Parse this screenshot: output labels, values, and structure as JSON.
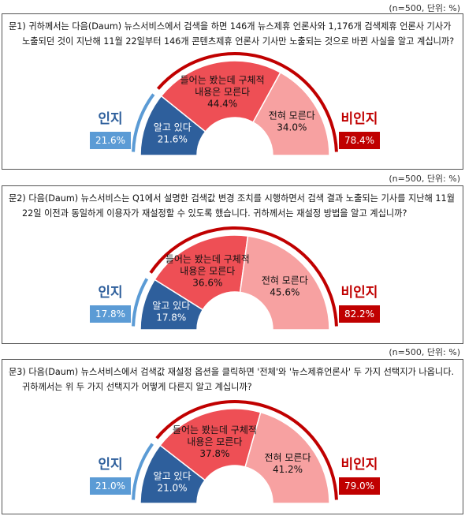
{
  "panels": [
    {
      "meta": "(n=500, 단위: %)",
      "question_line1": "문1) 귀하께서는 다음(Daum) 뉴스서비스에서 검색을 하면 146개 뉴스제휴 언론사와 1,176개 검색제휴 언론사 기사가",
      "question_line2": "노출되던 것이 지난해 11월 22일부터 146개 콘텐츠제휴 언론사 기사만 노출되는 것으로 바뀐 사실을 알고 계십니까?",
      "aware_label": "인지",
      "aware_value": "21.6%",
      "unaware_label": "비인지",
      "unaware_value": "78.4%",
      "chart_data": {
        "type": "pie",
        "categories": [
          "알고 있다",
          "들어는 봤는데 구체적 내용은 모른다",
          "전혀 모른다"
        ],
        "values": [
          21.6,
          44.4,
          34.0
        ],
        "slice_labels": [
          {
            "line1": "알고 있다",
            "line2": "",
            "value": "21.6%"
          },
          {
            "line1": "들어는 봤는데 구체적",
            "line2": "내용은 모른다",
            "value": "44.4%"
          },
          {
            "line1": "전혀 모른다",
            "line2": "",
            "value": "34.0%"
          }
        ]
      }
    },
    {
      "meta": "(n=500, 단위: %)",
      "question_line1": "문2) 다음(Daum) 뉴스서비스는 Q1에서 설명한 검색값 변경 조치를 시행하면서 검색 결과 노출되는 기사를 지난해 11월",
      "question_line2": "22일 이전과 동일하게 이용자가 재설정할 수 있도록 했습니다. 귀하께서는 재설정 방법을 알고 계십니까?",
      "aware_label": "인지",
      "aware_value": "17.8%",
      "unaware_label": "비인지",
      "unaware_value": "82.2%",
      "chart_data": {
        "type": "pie",
        "categories": [
          "알고 있다",
          "들어는 봤는데 구체적 내용은 모른다",
          "전혀 모른다"
        ],
        "values": [
          17.8,
          36.6,
          45.6
        ],
        "slice_labels": [
          {
            "line1": "알고 있다",
            "line2": "",
            "value": "17.8%"
          },
          {
            "line1": "들어는 봤는데 구체적",
            "line2": "내용은 모른다",
            "value": "36.6%"
          },
          {
            "line1": "전혀 모른다",
            "line2": "",
            "value": "45.6%"
          }
        ]
      }
    },
    {
      "meta": "(n=500, 단위: %)",
      "question_line1": "문3) 다음(Daum) 뉴스서비스에서 검색값 재설정 옵션을 클릭하면 '전체'와 '뉴스제휴언론사' 두 가지 선택지가 나옵니다.",
      "question_line2": "귀하께서는 위 두 가지 선택지가 어떻게 다른지 알고 계십니까?",
      "aware_label": "인지",
      "aware_value": "21.0%",
      "unaware_label": "비인지",
      "unaware_value": "79.0%",
      "chart_data": {
        "type": "pie",
        "categories": [
          "알고 있다",
          "들어는 봤는데 구체적 내용은 모른다",
          "전혀 모른다"
        ],
        "values": [
          21.0,
          37.8,
          41.2
        ],
        "slice_labels": [
          {
            "line1": "알고 있다",
            "line2": "",
            "value": "21.0%"
          },
          {
            "line1": "들어는 봤는데 구체적",
            "line2": "내용은 모른다",
            "value": "37.8%"
          },
          {
            "line1": "전혀 모른다",
            "line2": "",
            "value": "41.2%"
          }
        ]
      }
    }
  ],
  "colors": {
    "aware": "#2e5f9c",
    "partial": "#ee4f55",
    "unaware": "#f7a1a1",
    "aware_rim": "#5b9bd5",
    "unaware_rim": "#c00000"
  }
}
